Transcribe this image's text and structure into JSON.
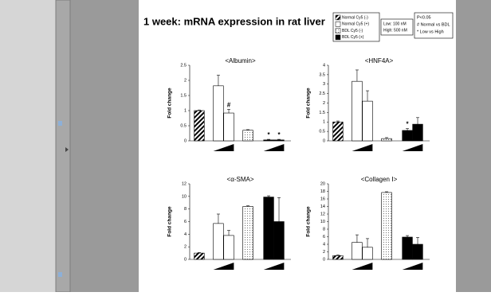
{
  "title": "1 week: mRNA expression in rat liver",
  "legend": [
    {
      "name": "Normal Cy5 (-)",
      "fill": "hatch"
    },
    {
      "name": "Normal Cy5 (+)",
      "fill": "#ffffff"
    },
    {
      "name": "BDL Cy5 (-)",
      "fill": "dots"
    },
    {
      "name": "BDL Cy5 (+)",
      "fill": "#000000"
    }
  ],
  "dose": [
    "Low: 100 nM",
    "High: 500 nM"
  ],
  "significance": [
    "P<0.05",
    "# Normal vs BDL",
    "* Low vs High"
  ],
  "chart_data": [
    {
      "type": "bar",
      "title": "<Albumin>",
      "y_label": "Fold change",
      "categories": [
        null,
        null,
        null,
        null,
        null,
        null
      ],
      "groups": [
        0,
        1,
        1,
        2,
        3,
        3
      ],
      "values": [
        1.0,
        1.82,
        0.92,
        0.35,
        0.03,
        0.03
      ],
      "errors": [
        0.02,
        0.35,
        0.12,
        0.02,
        0.02,
        0.02
      ],
      "annotations": [
        {
          "index": 2,
          "text": "#"
        },
        {
          "index": 4,
          "text": "*"
        },
        {
          "index": 5,
          "text": "*"
        }
      ],
      "ylim": [
        0,
        2.5
      ],
      "yticks": [
        0,
        0.5,
        1,
        1.5,
        2,
        2.5
      ]
    },
    {
      "type": "bar",
      "title": "<HNF4A>",
      "y_label": "Fold change",
      "categories": [
        null,
        null,
        null,
        null,
        null,
        null
      ],
      "groups": [
        0,
        1,
        1,
        2,
        3,
        3
      ],
      "values": [
        1.0,
        3.15,
        2.1,
        0.12,
        0.55,
        0.88
      ],
      "errors": [
        0.05,
        0.6,
        0.55,
        0.05,
        0.1,
        0.35
      ],
      "annotations": [
        {
          "index": 4,
          "text": "*"
        }
      ],
      "ylim": [
        0,
        4
      ],
      "yticks": [
        0,
        0.5,
        1,
        1.5,
        2,
        2.5,
        3,
        3.5,
        4
      ]
    },
    {
      "type": "bar",
      "title": "<α-SMA>",
      "y_label": "Fold change",
      "categories": [
        null,
        null,
        null,
        null,
        null,
        null
      ],
      "groups": [
        0,
        1,
        1,
        2,
        3,
        3
      ],
      "values": [
        1.0,
        5.7,
        3.8,
        8.4,
        9.9,
        6.0
      ],
      "errors": [
        0.1,
        1.5,
        0.8,
        0.1,
        0.2,
        3.8
      ],
      "annotations": [],
      "ylim": [
        0,
        12
      ],
      "yticks": [
        0,
        2,
        4,
        6,
        8,
        10,
        12
      ]
    },
    {
      "type": "bar",
      "title": "<Collagen Ⅰ>",
      "y_label": "Fold change",
      "categories": [
        null,
        null,
        null,
        null,
        null,
        null
      ],
      "groups": [
        0,
        1,
        1,
        2,
        3,
        3
      ],
      "values": [
        1.0,
        4.5,
        3.2,
        17.7,
        5.9,
        4.0
      ],
      "errors": [
        0.2,
        2.0,
        2.3,
        0.2,
        0.4,
        1.8
      ],
      "annotations": [],
      "ylim": [
        0,
        20
      ],
      "yticks": [
        0,
        2,
        4,
        6,
        8,
        10,
        12,
        14,
        16,
        18,
        20
      ]
    }
  ]
}
